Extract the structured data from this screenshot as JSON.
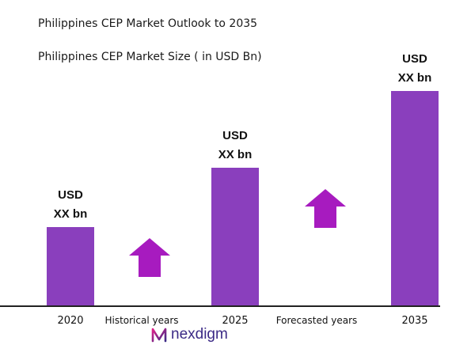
{
  "chart_data": {
    "type": "bar",
    "title": "Philippines CEP Market Outlook to 2035",
    "subtitle": "Philippines CEP Market Size ( in USD Bn)",
    "categories": [
      "2020",
      "2025",
      "2035"
    ],
    "values": [
      1.0,
      1.75,
      2.72
    ],
    "bar_labels": [
      {
        "line1": "USD",
        "line2": "XX bn"
      },
      {
        "line1": "USD",
        "line2": "XX bn"
      },
      {
        "line1": "USD",
        "line2": "XX bn"
      }
    ],
    "period_labels": [
      "Historical years",
      "Forecasted years"
    ],
    "bar_color": "#8a3fbd",
    "arrow_color": "#a71bbf",
    "axis_color": "#222222"
  },
  "brand": {
    "name": "nexdigm",
    "icon": "nexdigm-logo-icon"
  }
}
